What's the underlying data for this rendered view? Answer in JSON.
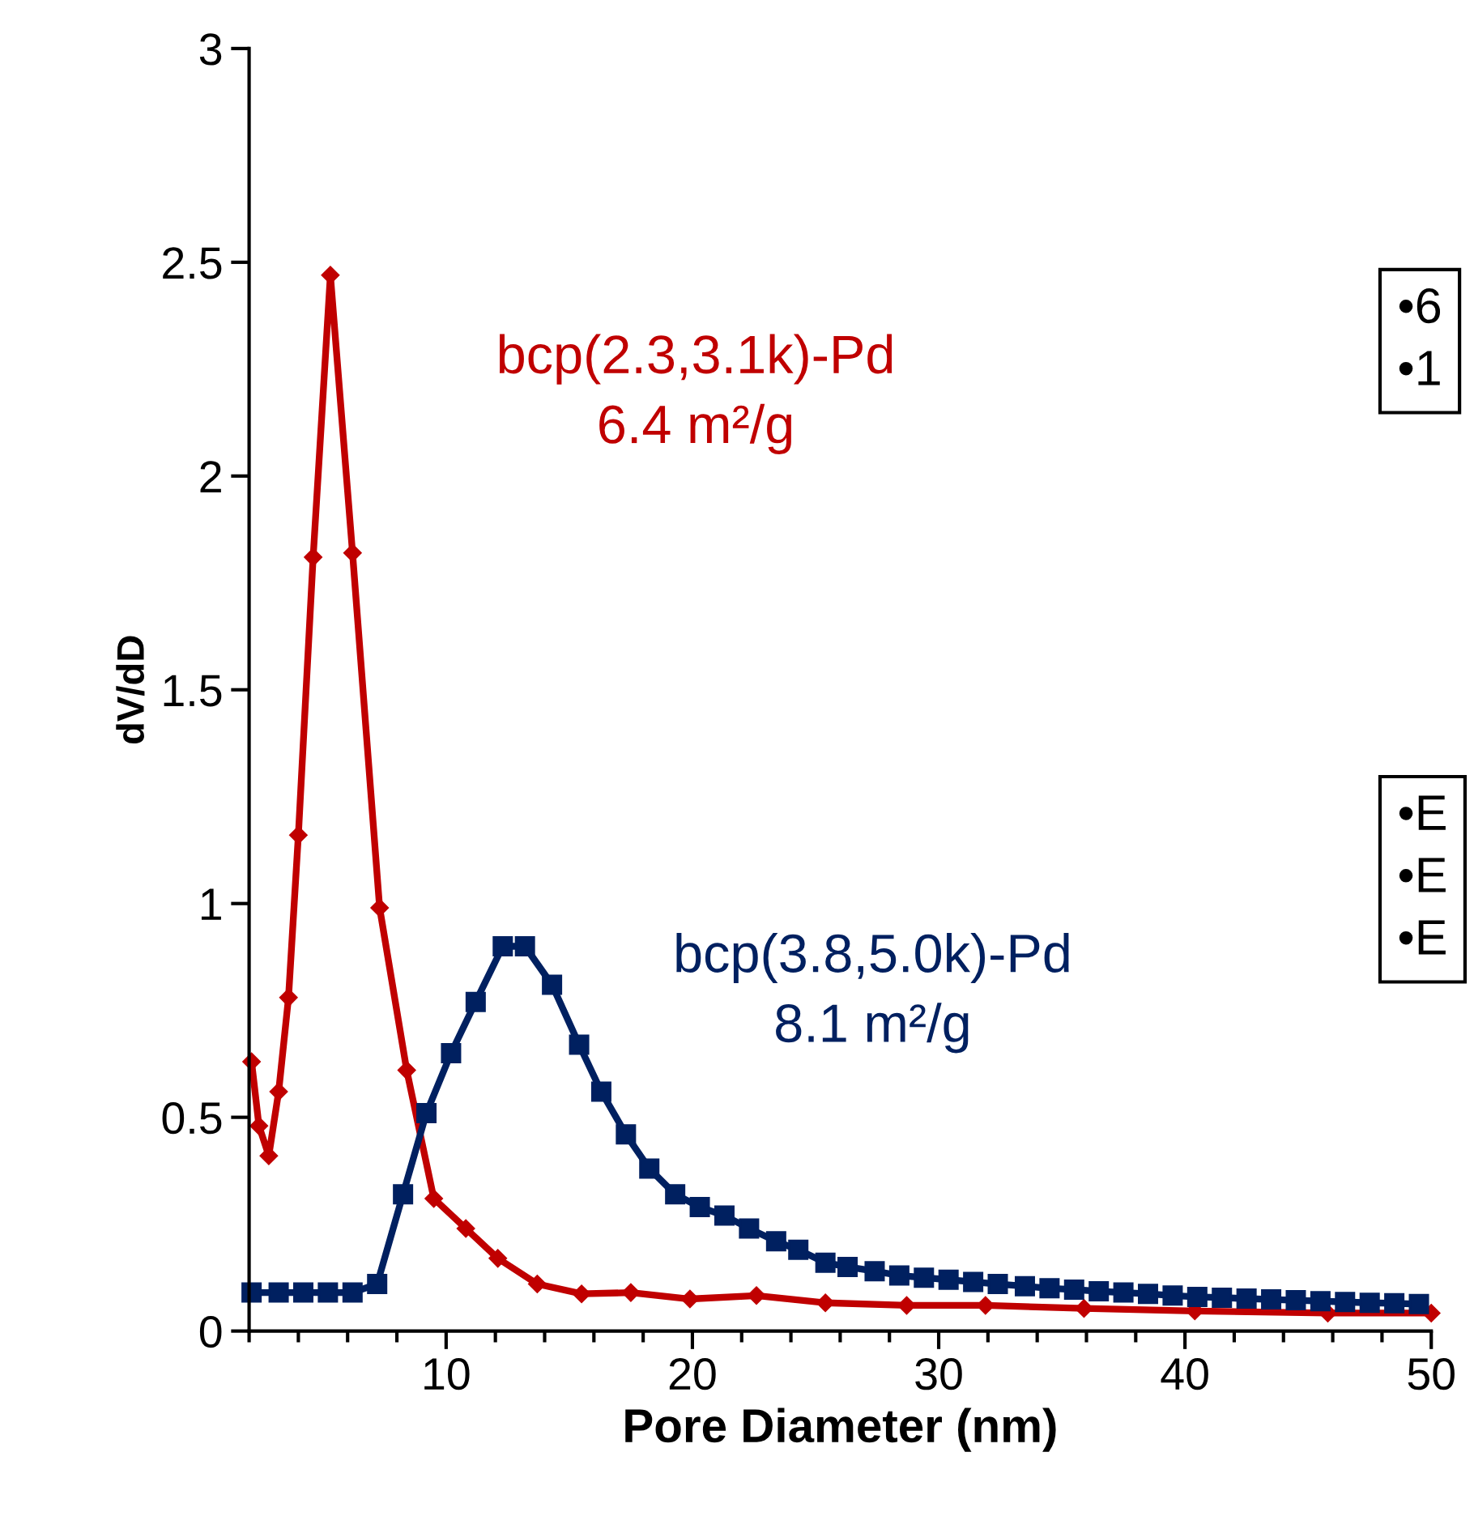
{
  "chart_data": {
    "type": "line",
    "xlabel": "Pore Diameter (nm)",
    "ylabel": "dV/dD",
    "xlim": [
      2,
      50
    ],
    "ylim": [
      0,
      3
    ],
    "xticks": [
      {
        "value": 2,
        "label": null
      },
      {
        "value": 4,
        "label": null
      },
      {
        "value": 6,
        "label": null
      },
      {
        "value": 8,
        "label": null
      },
      10,
      {
        "value": 12,
        "label": null
      },
      {
        "value": 14,
        "label": null
      },
      {
        "value": 16,
        "label": null
      },
      {
        "value": 18,
        "label": null
      },
      20,
      {
        "value": 22,
        "label": null
      },
      {
        "value": 24,
        "label": null
      },
      {
        "value": 26,
        "label": null
      },
      {
        "value": 28,
        "label": null
      },
      30,
      {
        "value": 32,
        "label": null
      },
      {
        "value": 34,
        "label": null
      },
      {
        "value": 36,
        "label": null
      },
      {
        "value": 38,
        "label": null
      },
      40,
      {
        "value": 42,
        "label": null
      },
      {
        "value": 44,
        "label": null
      },
      {
        "value": 46,
        "label": null
      },
      {
        "value": 48,
        "label": null
      },
      50
    ],
    "yticks": [
      0,
      0.5,
      1,
      1.5,
      2,
      2.5,
      3
    ],
    "grid": false,
    "legend": false,
    "series": [
      {
        "name": "bcp(2.3,3.1k)-Pd\n6.4 m²/g",
        "color": "#c00000",
        "marker": "diamond",
        "x": [
          2.1,
          2.4,
          2.8,
          3.2,
          3.6,
          4.0,
          4.6,
          5.3,
          6.2,
          7.3,
          8.4,
          9.5,
          10.8,
          12.1,
          13.7,
          15.5,
          17.5,
          19.9,
          22.6,
          25.4,
          28.7,
          31.9,
          35.9,
          40.4,
          45.8,
          50
        ],
        "values": [
          0.63,
          0.48,
          0.41,
          0.56,
          0.78,
          1.16,
          1.81,
          2.47,
          1.82,
          0.99,
          0.61,
          0.31,
          0.24,
          0.17,
          0.11,
          0.087,
          0.09,
          0.075,
          0.083,
          0.066,
          0.06,
          0.06,
          0.053,
          0.047,
          0.042,
          0.042
        ]
      },
      {
        "name": "bcp(3.8,5.0k)-Pd\n8.1 m²/g",
        "color": "#002060",
        "marker": "square",
        "x": [
          2.1,
          3.2,
          4.2,
          5.2,
          6.2,
          7.2,
          8.25,
          9.2,
          10.2,
          11.2,
          12.3,
          13.2,
          14.3,
          15.4,
          16.3,
          17.3,
          18.25,
          19.3,
          20.3,
          21.3,
          22.3,
          23.4,
          24.3,
          25.4,
          26.3,
          27.4,
          28.4,
          29.4,
          30.4,
          31.4,
          32.4,
          33.5,
          34.5,
          35.5,
          36.5,
          37.5,
          38.5,
          39.5,
          40.5,
          41.5,
          42.5,
          43.5,
          44.5,
          45.5,
          46.5,
          47.5,
          48.5,
          49.5
        ],
        "values": [
          0.09,
          0.09,
          0.09,
          0.09,
          0.09,
          0.11,
          0.32,
          0.51,
          0.65,
          0.77,
          0.9,
          0.9,
          0.81,
          0.67,
          0.56,
          0.46,
          0.38,
          0.32,
          0.29,
          0.27,
          0.24,
          0.21,
          0.19,
          0.16,
          0.15,
          0.14,
          0.13,
          0.125,
          0.12,
          0.115,
          0.11,
          0.105,
          0.1,
          0.097,
          0.093,
          0.09,
          0.087,
          0.083,
          0.08,
          0.078,
          0.076,
          0.074,
          0.072,
          0.07,
          0.068,
          0.066,
          0.065,
          0.063
        ]
      }
    ],
    "annotations": [
      "•6\n•1",
      "•E\n•E\n•E"
    ]
  }
}
